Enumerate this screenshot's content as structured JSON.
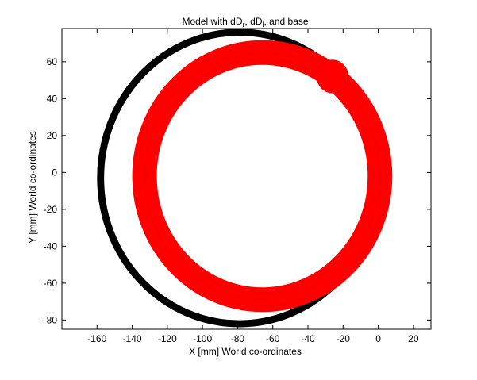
{
  "chart_data": {
    "type": "line",
    "title": "Model with dD",
    "title_parts": {
      "prefix": "Model with dD",
      "sub_r": "r",
      "middle": ", dD",
      "sub_l": "l",
      "suffix": ", and base"
    },
    "xlabel": "X [mm] World co-ordinates",
    "ylabel": "Y [mm] World co-ordinates",
    "xlim": [
      -180,
      30
    ],
    "ylim": [
      -85,
      78
    ],
    "x_ticks": [
      -160,
      -140,
      -120,
      -100,
      -80,
      -60,
      -40,
      -20,
      0,
      20
    ],
    "y_ticks": [
      -80,
      -60,
      -40,
      -20,
      0,
      20,
      40,
      60
    ],
    "grid": false,
    "series": [
      {
        "style": "thin black trace",
        "color": "#000000",
        "shape": "circle",
        "center": [
          -79,
          -3
        ],
        "radius": 79,
        "band_width_mm": 4
      },
      {
        "style": "thick red trace",
        "color": "#ff0000",
        "shape": "circle",
        "center": [
          -66,
          -2
        ],
        "radius_inner": 60,
        "radius_outer": 74,
        "bulge_center": [
          -26,
          52
        ],
        "bulge_radius": 9
      }
    ]
  }
}
